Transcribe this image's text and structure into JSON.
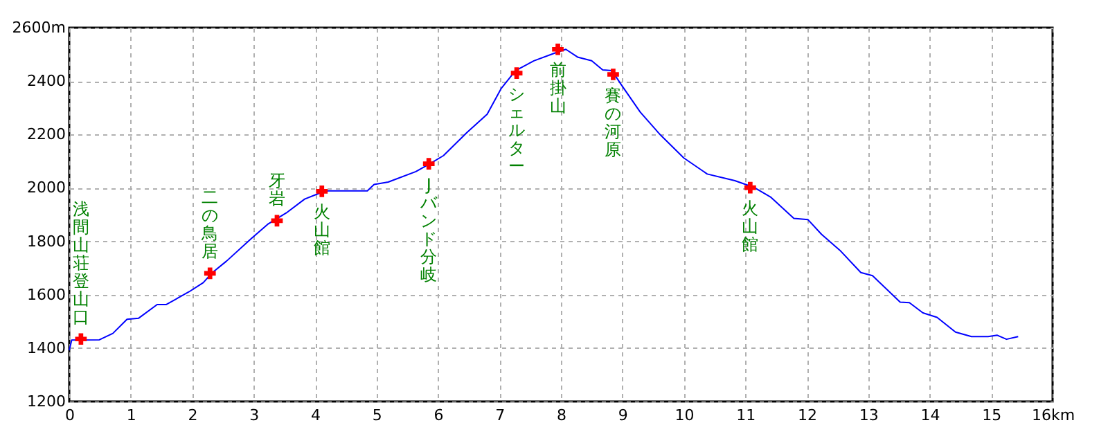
{
  "chart_data": {
    "type": "line",
    "xlim": [
      0,
      16
    ],
    "ylim": [
      1200,
      2600
    ],
    "xticks": [
      0,
      1,
      2,
      3,
      4,
      5,
      6,
      7,
      8,
      9,
      10,
      11,
      12,
      13,
      14,
      15,
      {
        "value": 16,
        "label": "16km"
      }
    ],
    "yticks": [
      1200,
      1400,
      1600,
      1800,
      2000,
      2200,
      2400,
      {
        "value": 2600,
        "label": "2600m"
      }
    ],
    "grid": true,
    "legend": false,
    "series": [
      {
        "color": "#0000ff",
        "line_style": "solid",
        "x": [
          0,
          0.04,
          0.49,
          0.71,
          0.94,
          1.13,
          1.43,
          1.58,
          1.95,
          2.18,
          2.33,
          2.56,
          2.97,
          3.23,
          3.53,
          3.83,
          4.06,
          4.21,
          4.85,
          4.96,
          5.19,
          5.64,
          5.9,
          6.09,
          6.47,
          6.8,
          7.03,
          7.26,
          7.56,
          7.89,
          8.08,
          8.27,
          8.5,
          8.68,
          8.83,
          8.98,
          9.29,
          9.62,
          10.0,
          10.38,
          10.83,
          11.15,
          11.41,
          11.79,
          12.02,
          12.24,
          12.54,
          12.88,
          13.07,
          13.52,
          13.67,
          13.89,
          14.12,
          14.42,
          14.68,
          14.95,
          15.1,
          15.25,
          15.44
        ],
        "values": [
          1392,
          1430,
          1431,
          1455,
          1508,
          1512,
          1563,
          1563,
          1611,
          1645,
          1683,
          1726,
          1812,
          1864,
          1906,
          1958,
          1979,
          1989,
          1989,
          2013,
          2022,
          2061,
          2095,
          2121,
          2207,
          2276,
          2373,
          2439,
          2476,
          2504,
          2519,
          2490,
          2476,
          2442,
          2439,
          2387,
          2284,
          2198,
          2112,
          2052,
          2027,
          2001,
          1966,
          1886,
          1881,
          1826,
          1766,
          1683,
          1671,
          1572,
          1570,
          1532,
          1515,
          1460,
          1443,
          1443,
          1448,
          1433,
          1443
        ]
      },
      {
        "type": "scatter",
        "color": "#ff0000",
        "marker": "cross",
        "x": [
          0.19,
          2.29,
          3.38,
          4.11,
          5.85,
          7.28,
          7.95,
          8.85,
          11.08
        ],
        "values": [
          1434,
          1680,
          1877,
          1987,
          2090,
          2430,
          2519,
          2425,
          2001
        ]
      }
    ],
    "annotations": [
      {
        "text": "浅間山荘登山口",
        "x": 0.19,
        "y": 1434
      },
      {
        "text": "二の鳥居",
        "x": 2.29,
        "y": 1680
      },
      {
        "text": "牙岩",
        "x": 3.38,
        "y": 1877
      },
      {
        "text": "火山館",
        "x": 4.11,
        "y": 1987
      },
      {
        "text": "Jバンド分岐",
        "x": 5.85,
        "y": 2090
      },
      {
        "text": "シェルター",
        "x": 7.28,
        "y": 2430
      },
      {
        "text": "前掛山",
        "x": 7.95,
        "y": 2519
      },
      {
        "text": "賽の河原",
        "x": 8.85,
        "y": 2425
      },
      {
        "text": "火山館",
        "x": 11.08,
        "y": 2001
      }
    ]
  }
}
